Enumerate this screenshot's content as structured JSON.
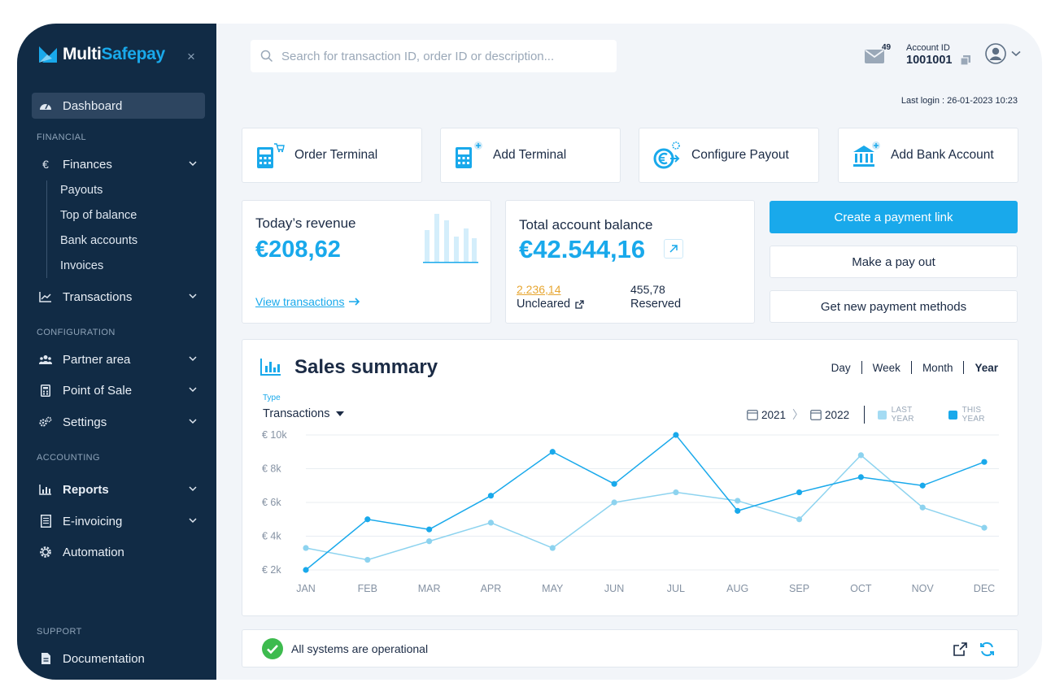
{
  "brand": {
    "name_part1": "Multi",
    "name_part2": "Safepay"
  },
  "sidebar": {
    "close": "×",
    "dashboard": "Dashboard",
    "section_financial": "FINANCIAL",
    "finances": "Finances",
    "finances_sub": [
      "Payouts",
      "Top of balance",
      "Bank accounts",
      "Invoices"
    ],
    "transactions": "Transactions",
    "section_configuration": "CONFIGURATION",
    "partner_area": "Partner area",
    "point_of_sale": "Point of Sale",
    "settings": "Settings",
    "section_accounting": "ACCOUNTING",
    "reports": "Reports",
    "e_invoicing": "E-invoicing",
    "automation": "Automation",
    "section_support": "SUPPORT",
    "documentation": "Documentation",
    "finances_icon": "€"
  },
  "header": {
    "search_placeholder": "Search for transaction ID, order ID or description...",
    "mail_count": "49",
    "account_label": "Account ID",
    "account_id": "1001001",
    "last_login": "Last login : 26-01-2023 10:23"
  },
  "quick_actions": [
    {
      "label": "Order Terminal",
      "icon": "order-terminal-icon"
    },
    {
      "label": "Add Terminal",
      "icon": "add-terminal-icon"
    },
    {
      "label": "Configure Payout",
      "icon": "configure-payout-icon"
    },
    {
      "label": "Add Bank Account",
      "icon": "add-bank-account-icon"
    }
  ],
  "revenue": {
    "title": "Today’s revenue",
    "value": "€208,62",
    "link": "View transactions"
  },
  "balance": {
    "title": "Total account balance",
    "value": "€42.544,16",
    "uncleared_value": "2.236,14",
    "uncleared_label": "Uncleared",
    "reserved_value": "455,78",
    "reserved_label": "Reserved"
  },
  "actions": {
    "create_link": "Create a payment link",
    "pay_out": "Make a pay out",
    "payment_methods": "Get new payment methods"
  },
  "sales": {
    "title": "Sales summary",
    "periods": [
      "Day",
      "Week",
      "Month",
      "Year"
    ],
    "active_period": "Year",
    "type_label": "Type",
    "type_value": "Transactions",
    "year_from": "2021",
    "year_to": "2022",
    "legend_last": "LAST YEAR",
    "legend_this": "THIS YEAR"
  },
  "status": {
    "text": "All systems are operational"
  },
  "colors": {
    "accent": "#19a9eb",
    "last_year": "#8dd3ef",
    "sidebar": "#112b45",
    "ok": "#3dbb4e",
    "uncleared": "#e7a631"
  },
  "chart_data": {
    "type": "line",
    "categories": [
      "JAN",
      "FEB",
      "MAR",
      "APR",
      "MAY",
      "JUN",
      "JUL",
      "AUG",
      "SEP",
      "OCT",
      "NOV",
      "DEC"
    ],
    "y_ticks": [
      "€ 2k",
      "€ 4k",
      "€ 6k",
      "€ 8k",
      "€ 10k"
    ],
    "ylim": [
      2000,
      10000
    ],
    "grid": true,
    "legend": "top-right",
    "series": [
      {
        "name": "LAST YEAR",
        "values": [
          3300,
          2600,
          3700,
          4800,
          3300,
          6000,
          6600,
          6100,
          5000,
          8800,
          5700,
          4500
        ]
      },
      {
        "name": "THIS YEAR",
        "values": [
          2000,
          5000,
          4400,
          6400,
          9000,
          7100,
          10000,
          5500,
          6600,
          7500,
          7000,
          8400
        ]
      }
    ]
  }
}
